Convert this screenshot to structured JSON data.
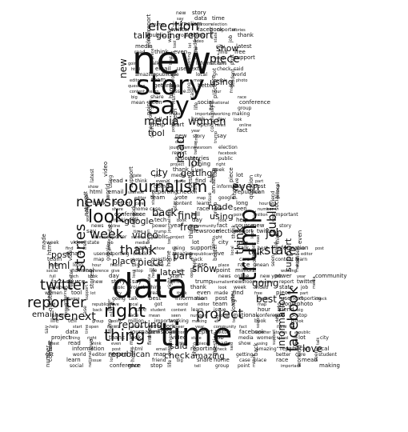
{
  "image": {
    "description_words": [
      "new",
      "story",
      "say",
      "data",
      "time",
      "trump",
      "journalism",
      "newsroom",
      "election",
      "report",
      "twitter",
      "facebook",
      "reporter",
      "stories",
      "public",
      "project",
      "thing",
      "right",
      "thank",
      "look",
      "week",
      "video",
      "state",
      "job",
      "media",
      "women",
      "tool",
      "lot",
      "city",
      "latest",
      "read",
      "think",
      "even",
      "made",
      "find",
      "free",
      "piece",
      "part",
      "show",
      "using",
      "support",
      "going",
      "talk",
      "best",
      "information",
      "love",
      "post",
      "html",
      "email",
      "usenext",
      "reporting",
      "check",
      "said",
      "amazing",
      "republican",
      "live",
      "local",
      "got",
      "world",
      "editor",
      "team",
      "vote",
      "map",
      "google",
      "photo",
      "question",
      "getting",
      "back",
      "better",
      "care",
      "student",
      "content",
      "learn",
      "issue",
      "long",
      "hour",
      "friend",
      "big",
      "share",
      "home",
      "case",
      "place",
      "race",
      "mean",
      "seen",
      "number",
      "social",
      "national",
      "conference",
      "give",
      "stop",
      "life",
      "tell",
      "group",
      "point",
      "million",
      "important",
      "working",
      "making",
      "full",
      "tech",
      "book",
      "day",
      "look",
      "help",
      "start",
      "open",
      "news",
      "online",
      "new york",
      "power",
      "year",
      "community",
      "fact",
      "source"
    ]
  }
}
